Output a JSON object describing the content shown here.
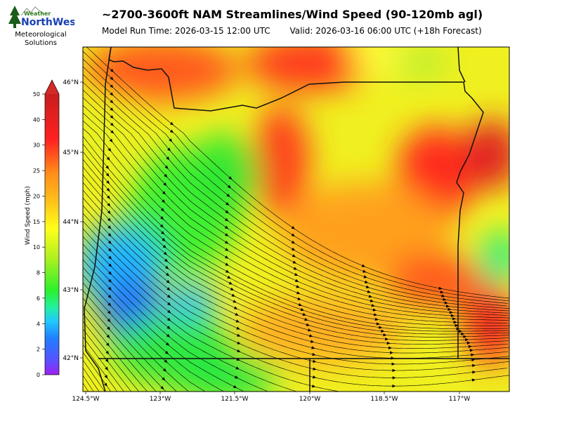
{
  "logo": {
    "brand_small": "Weather",
    "brand_large": "NorthWest",
    "sub_line1": "Meteorological",
    "sub_line2": "Solutions"
  },
  "title": "~2700-3600ft NAM Streamlines/Wind Speed (90-120mb agl)",
  "model_run": "Model Run Time: 2026-03-15 12:00 UTC",
  "valid": "Valid: 2026-03-16 06:00 UTC  (+18h Forecast)",
  "colorbar": {
    "label": "Wind Speed (mph)",
    "ticks": [
      0,
      2,
      4,
      6,
      8,
      10,
      15,
      20,
      25,
      30,
      40,
      50
    ]
  },
  "map": {
    "lat_labels": [
      "46°N",
      "45°N",
      "44°N",
      "43°N",
      "42°N"
    ],
    "lon_labels": [
      "124.5°W",
      "123°W",
      "121.5°W",
      "120°W",
      "118.5°W",
      "117°W"
    ]
  },
  "colors": {
    "calm": "#a020f0",
    "low": "#1f7fff",
    "moderate": "#2cf02c",
    "fresh": "#ffff1a",
    "strong": "#ff8c1a",
    "high": "#ff2020",
    "extreme": "#c81e1e"
  }
}
